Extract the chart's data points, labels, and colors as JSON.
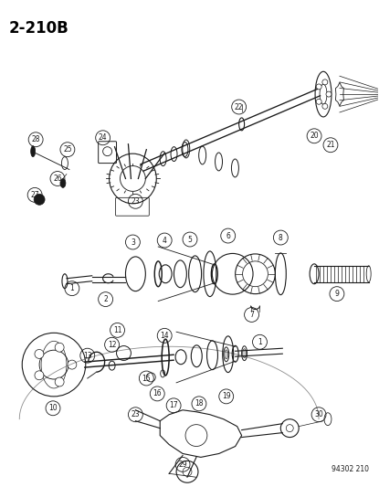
{
  "title": "2-210B",
  "watermark": "94302 210",
  "bg_color": "#ffffff",
  "fig_width": 4.15,
  "fig_height": 5.33,
  "dpi": 100
}
